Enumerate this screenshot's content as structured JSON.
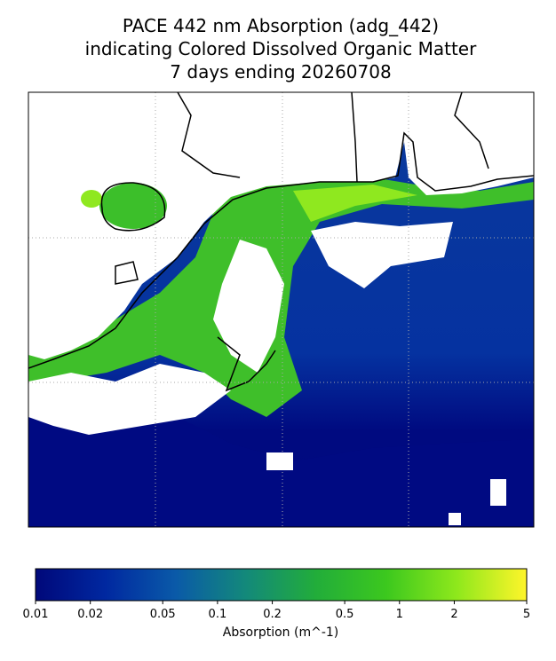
{
  "title": [
    "PACE 442 nm Absorption (adg_442)",
    "indicating Colored Dissolved Organic Matter",
    "7 days ending 20260708"
  ],
  "colorbar": {
    "label": "Absorption (m^-1)",
    "lim": [
      0.01,
      5
    ],
    "ticks": [
      0.01,
      0.02,
      0.05,
      0.1,
      0.2,
      0.5,
      1,
      2,
      5
    ],
    "log": true,
    "colors": [
      "#00087a",
      "#0028a0",
      "#0a5aa8",
      "#13897a",
      "#22ad3a",
      "#3cc81e",
      "#8ee81c",
      "#fff52a"
    ]
  }
}
